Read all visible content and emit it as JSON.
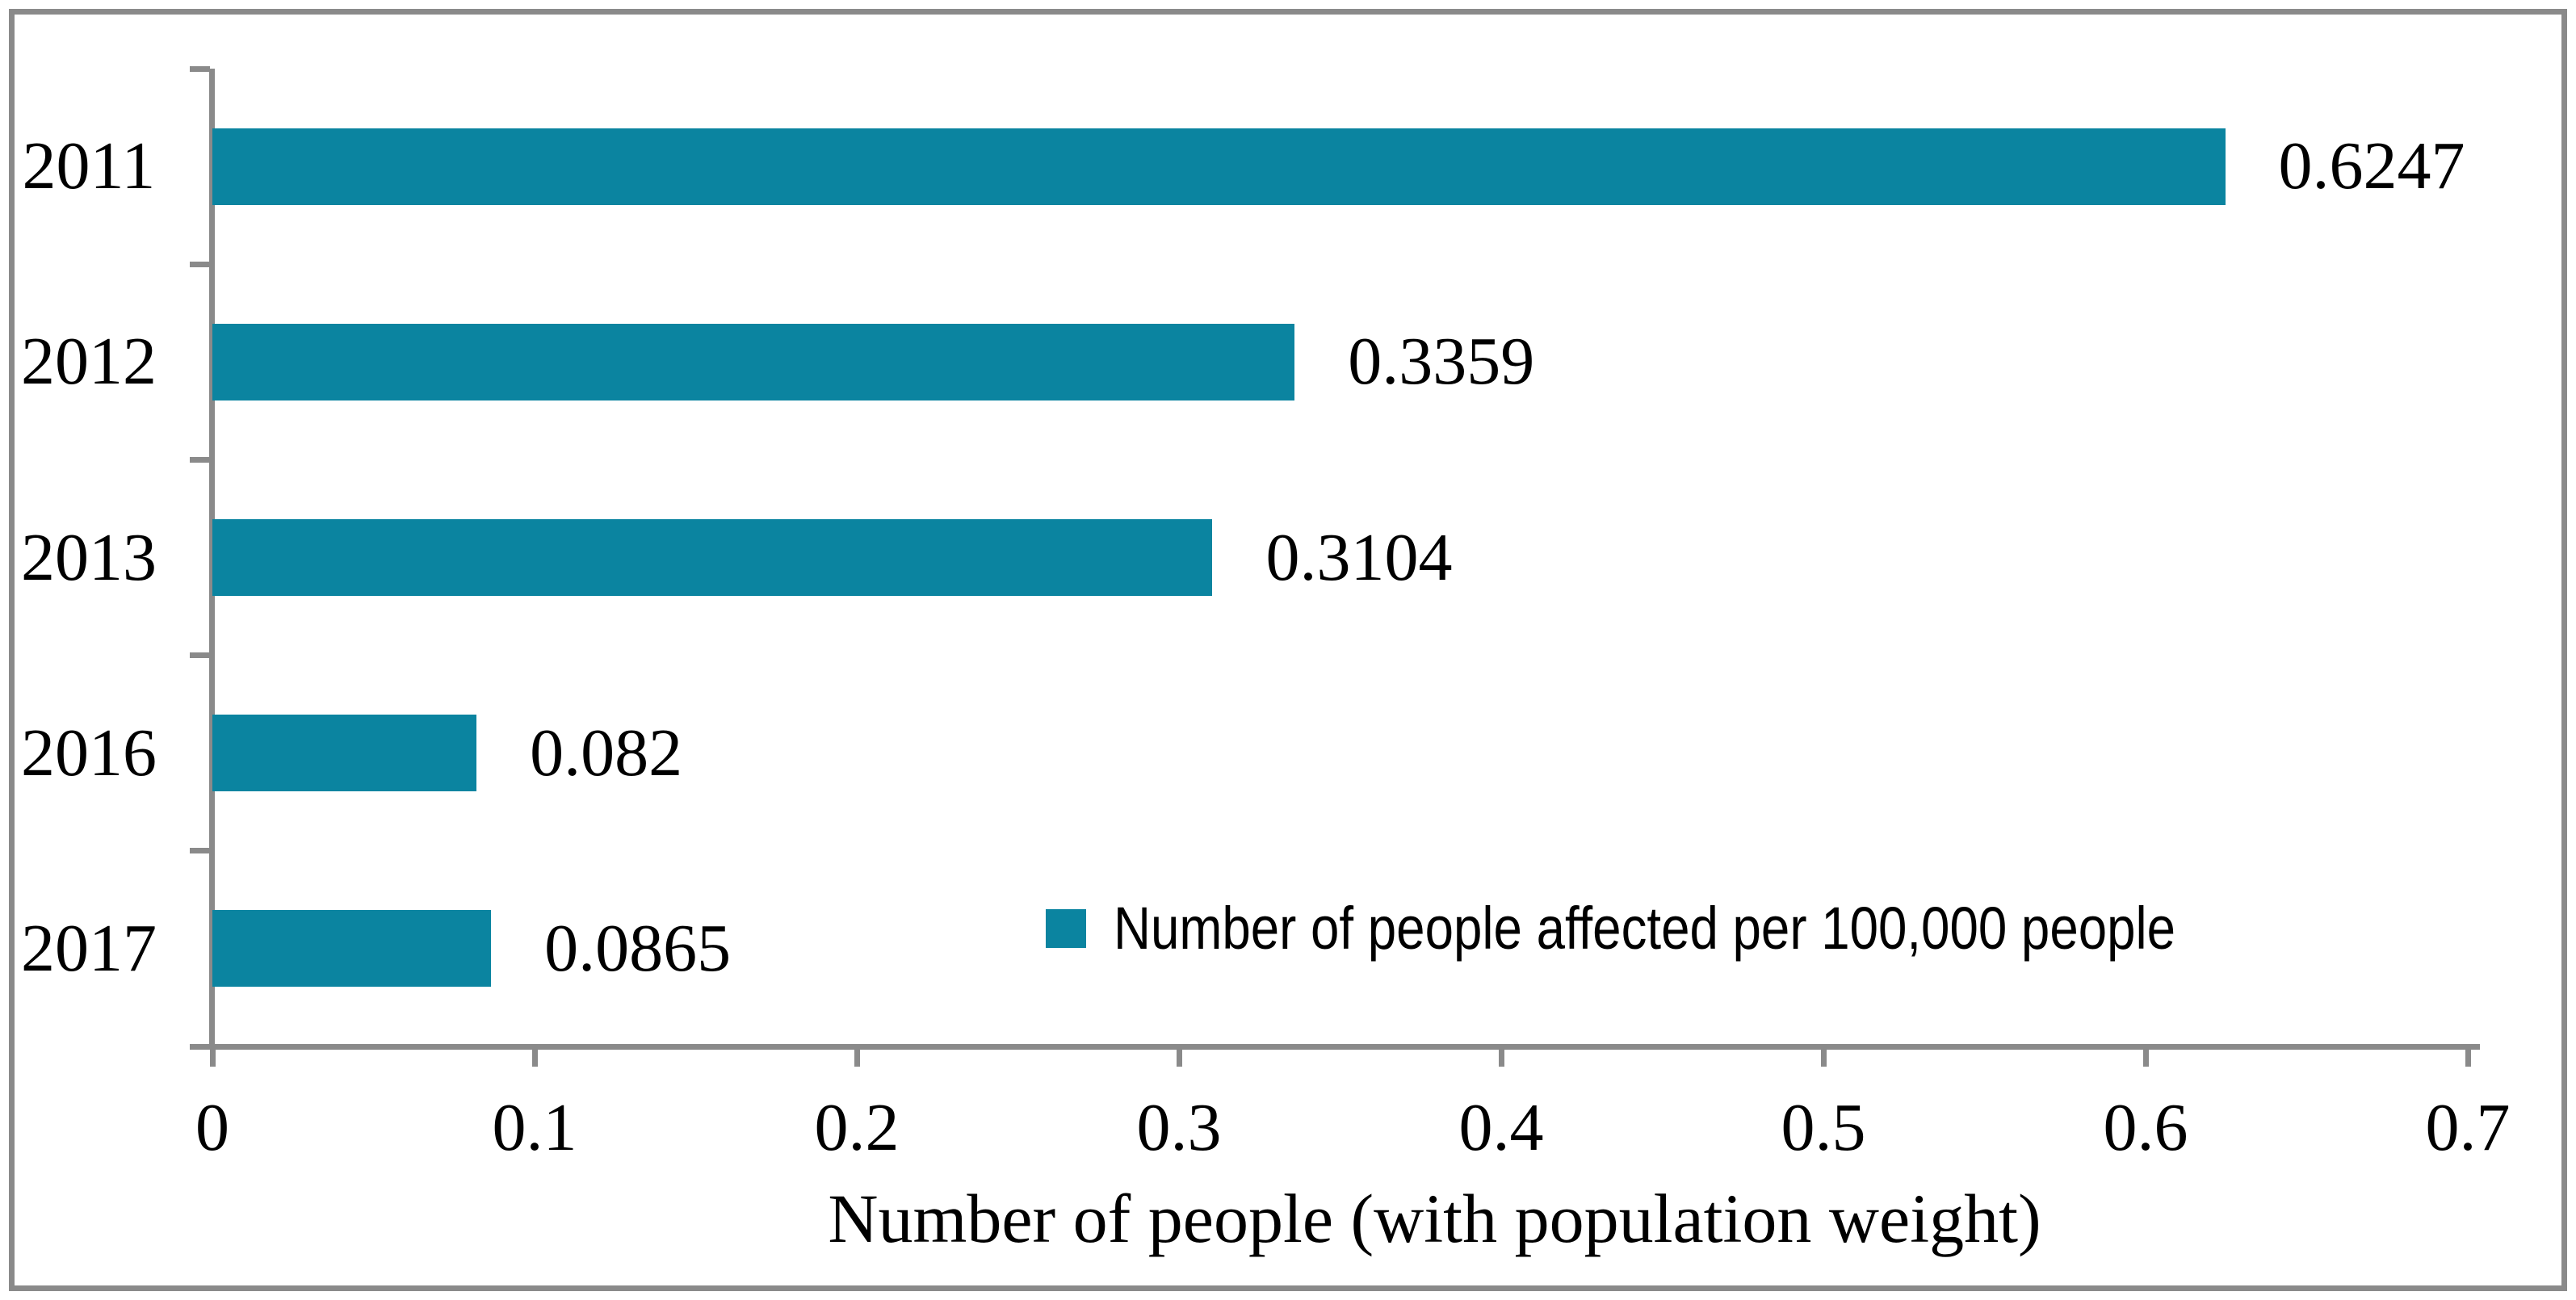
{
  "chart_data": {
    "type": "bar",
    "orientation": "horizontal",
    "title": "",
    "categories": [
      "2011",
      "2012",
      "2013",
      "2016",
      "2017"
    ],
    "values": [
      0.6247,
      0.3359,
      0.3104,
      0.082,
      0.0865
    ],
    "value_labels": [
      "0.6247",
      "0.3359",
      "0.3104",
      "0.082",
      "0.0865"
    ],
    "series_name": "Number of people affected per 100,000 people",
    "xlabel": "Number of people (with  population weight)",
    "ylabel": "",
    "xlim": [
      0,
      0.7
    ],
    "xtick_labels": [
      "0",
      "0.1",
      "0.2",
      "0.3",
      "0.4",
      "0.5",
      "0.6",
      "0.7"
    ],
    "ytick_count": 6,
    "grid": false,
    "legend_position": "inside-lower-right",
    "colors": {
      "bar": "#0B84A0",
      "axis": "#8A8A8A",
      "frame": "#8A8A8A",
      "text": "#000000",
      "background": "#FFFFFF"
    }
  }
}
